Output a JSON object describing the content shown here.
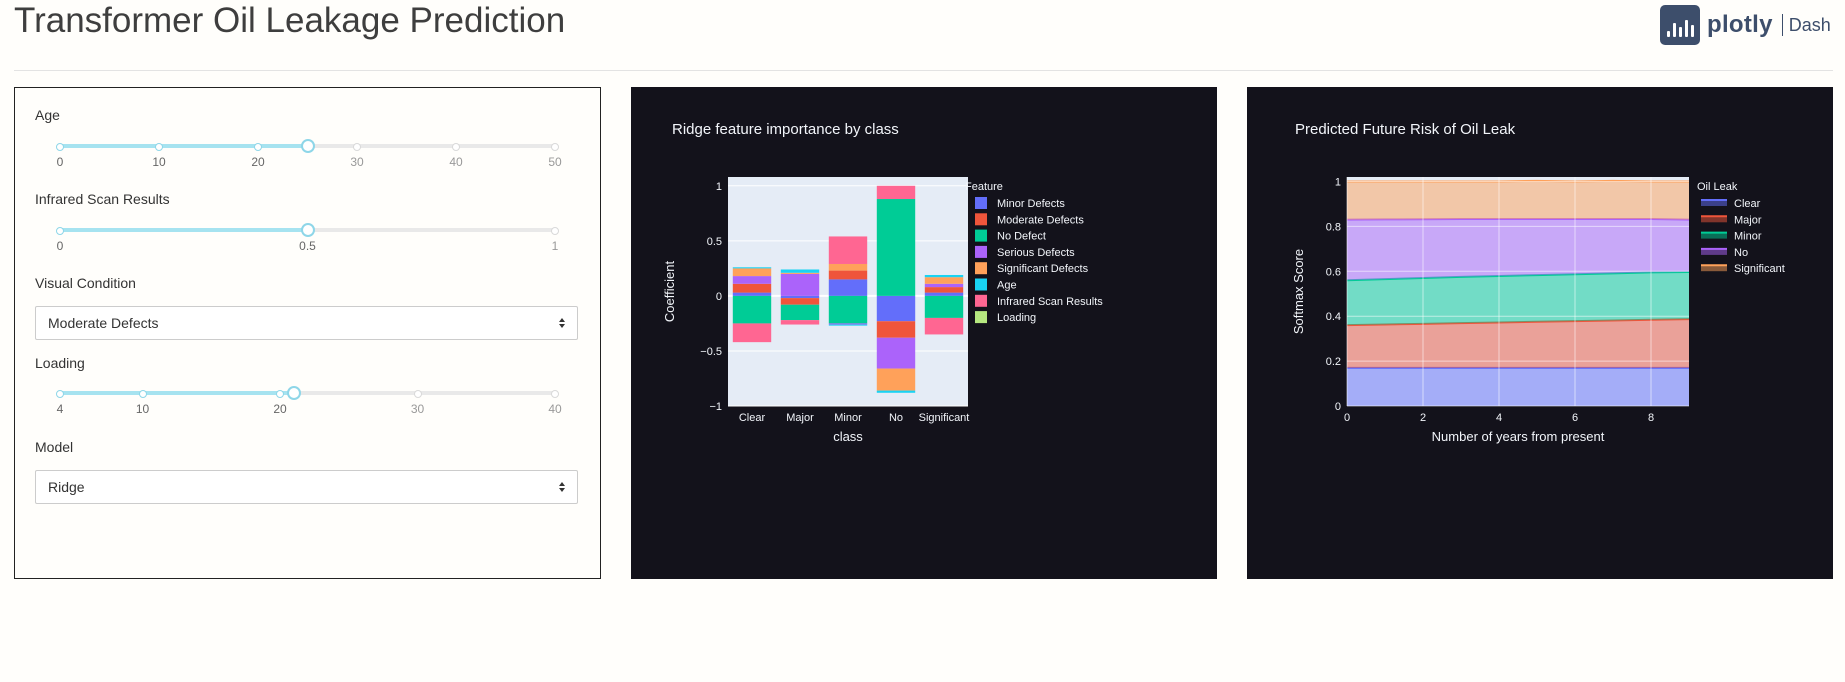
{
  "header": {
    "title": "Transformer Oil Leakage Prediction",
    "logo_text": "plotly",
    "logo_sub": "Dash"
  },
  "controls": {
    "age": {
      "label": "Age",
      "min": 0,
      "max": 50,
      "value": 25,
      "marks": [
        "0",
        "10",
        "20",
        "30",
        "40",
        "50"
      ]
    },
    "infrared": {
      "label": "Infrared Scan Results",
      "min": 0,
      "max": 1,
      "value": 0.5,
      "marks": [
        "0",
        "0.5",
        "1"
      ]
    },
    "visual": {
      "label": "Visual Condition",
      "value": "Moderate Defects"
    },
    "loading": {
      "label": "Loading",
      "min": 4,
      "max": 40,
      "value": 21,
      "marks": [
        "4",
        "10",
        "20",
        "30",
        "40"
      ]
    },
    "model": {
      "label": "Model",
      "value": "Ridge"
    }
  },
  "chart_data": [
    {
      "type": "bar",
      "title": "Ridge feature importance by class",
      "xlabel": "class",
      "ylabel": "Coefficient",
      "ylim": [
        -1,
        1.08
      ],
      "yticks": [
        "1",
        "0.5",
        "0",
        "−0.5",
        "−1"
      ],
      "categories": [
        "Clear",
        "Major",
        "Minor",
        "No",
        "Significant"
      ],
      "legend_title": "Feature",
      "legend_position": "right",
      "series": [
        {
          "name": "Minor Defects",
          "color": "#636efa",
          "values": [
            0.03,
            -0.02,
            0.15,
            -0.23,
            0.03
          ]
        },
        {
          "name": "Moderate Defects",
          "color": "#ef553b",
          "values": [
            0.08,
            -0.06,
            0.08,
            -0.15,
            0.05
          ]
        },
        {
          "name": "No Defect",
          "color": "#00cc96",
          "values": [
            -0.25,
            -0.14,
            -0.25,
            0.88,
            -0.2
          ]
        },
        {
          "name": "Serious Defects",
          "color": "#ab63fa",
          "values": [
            0.07,
            0.2,
            -0.01,
            -0.28,
            0.03
          ]
        },
        {
          "name": "Significant Defects",
          "color": "#ffa15a",
          "values": [
            0.07,
            0.01,
            0.06,
            -0.2,
            0.06
          ]
        },
        {
          "name": "Age",
          "color": "#19d3f3",
          "values": [
            0.01,
            0.03,
            -0.01,
            -0.02,
            0.02
          ]
        },
        {
          "name": "Infrared Scan Results",
          "color": "#ff6692",
          "values": [
            -0.17,
            -0.04,
            0.25,
            0.12,
            -0.15
          ]
        },
        {
          "name": "Loading",
          "color": "#b6e880",
          "values": [
            0.0,
            0.0,
            0.0,
            0.0,
            0.0
          ]
        }
      ]
    },
    {
      "type": "area",
      "title": "Predicted Future Risk of Oil Leak",
      "xlabel": "Number of years from present",
      "ylabel": "Softmax Score",
      "xlim": [
        0,
        9
      ],
      "ylim": [
        0,
        1.02
      ],
      "xticks": [
        "0",
        "2",
        "4",
        "6",
        "8"
      ],
      "yticks": [
        "1",
        "0.8",
        "0.6",
        "0.4",
        "0.2",
        "0"
      ],
      "legend_title": "Oil Leak",
      "legend_position": "right",
      "x": [
        0,
        1,
        2,
        3,
        4,
        5,
        6,
        7,
        8,
        9
      ],
      "series": [
        {
          "name": "Clear",
          "color": "#636efa",
          "values": [
            0.17,
            0.17,
            0.17,
            0.17,
            0.17,
            0.17,
            0.17,
            0.17,
            0.17,
            0.17
          ]
        },
        {
          "name": "Major",
          "color": "#ef553b",
          "values": [
            0.19,
            0.193,
            0.196,
            0.199,
            0.202,
            0.205,
            0.208,
            0.211,
            0.214,
            0.217
          ]
        },
        {
          "name": "Minor",
          "color": "#00cc96",
          "values": [
            0.2,
            0.202,
            0.204,
            0.206,
            0.207,
            0.208,
            0.209,
            0.21,
            0.211,
            0.21
          ]
        },
        {
          "name": "No",
          "color": "#ab63fa",
          "values": [
            0.27,
            0.266,
            0.262,
            0.258,
            0.254,
            0.25,
            0.246,
            0.242,
            0.238,
            0.233
          ]
        },
        {
          "name": "Significant",
          "color": "#ffa15a",
          "values": [
            0.17,
            0.169,
            0.168,
            0.167,
            0.167,
            0.17,
            0.167,
            0.17,
            0.167,
            0.17
          ]
        }
      ]
    }
  ]
}
